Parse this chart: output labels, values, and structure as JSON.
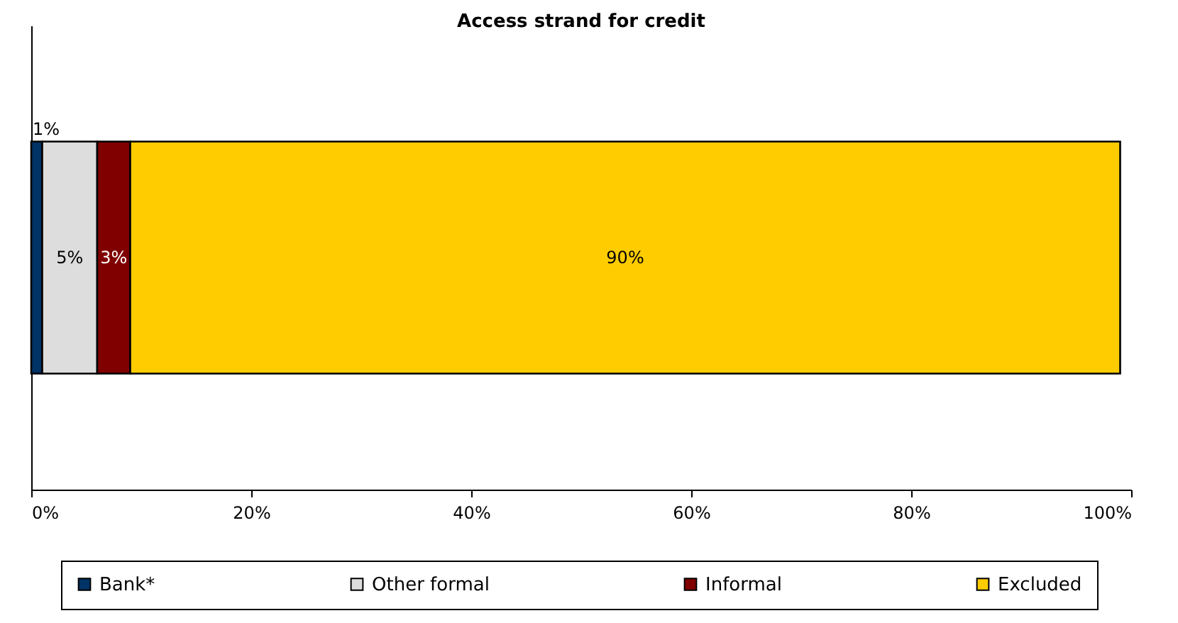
{
  "chart_data": {
    "type": "bar",
    "title": "Access strand for credit",
    "orientation": "horizontal",
    "stacked": true,
    "categories": [
      null
    ],
    "series": [
      {
        "name": "Bank*",
        "color": "#003366",
        "values": [
          1
        ],
        "value_labels": [
          "1%"
        ]
      },
      {
        "name": "Other formal",
        "color": "#dddddd",
        "values": [
          5
        ],
        "value_labels": [
          "5%"
        ]
      },
      {
        "name": "Informal",
        "color": "#800000",
        "values": [
          3
        ],
        "value_labels": [
          "3%"
        ]
      },
      {
        "name": "Excluded",
        "color": "#ffcc00",
        "values": [
          90
        ],
        "value_labels": [
          "90%"
        ]
      }
    ],
    "xlim": [
      0,
      100
    ],
    "xticks": [
      {
        "value": 0,
        "label": "0%"
      },
      {
        "value": 20,
        "label": "20%"
      },
      {
        "value": 40,
        "label": "40%"
      },
      {
        "value": 60,
        "label": "60%"
      },
      {
        "value": 80,
        "label": "80%"
      },
      {
        "value": 100,
        "label": "100%"
      }
    ],
    "legend": "bottom",
    "tick_labels": "x"
  }
}
